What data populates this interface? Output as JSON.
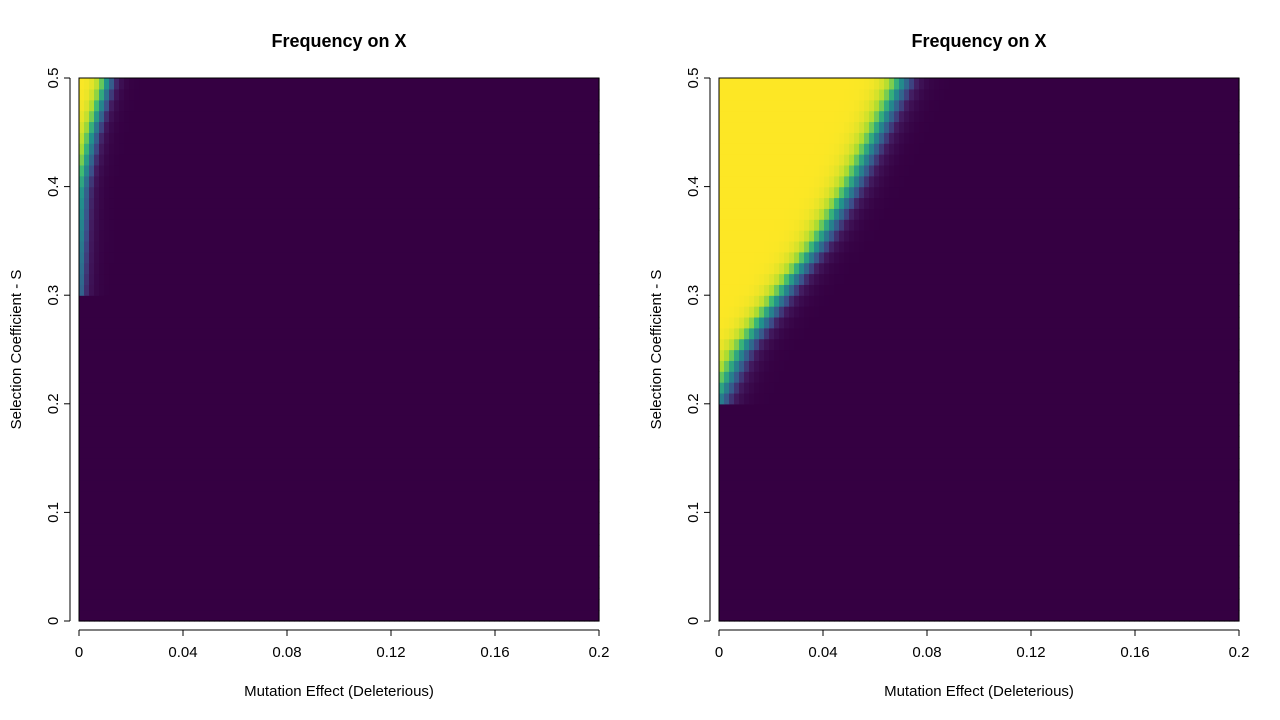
{
  "chart_data": [
    {
      "type": "heatmap",
      "title": "Frequency on X",
      "xlabel": "Mutation Effect (Deleterious)",
      "ylabel": "Selection Coefficient - S",
      "xlim": [
        0,
        0.2
      ],
      "ylim": [
        0,
        0.5
      ],
      "x_ticks": [
        0,
        0.04,
        0.08,
        0.12,
        0.16,
        0.2
      ],
      "x_tick_labels": [
        "0",
        "0.04",
        "0.08",
        "0.12",
        "0.16",
        "0.2"
      ],
      "y_ticks": [
        0,
        0.1,
        0.2,
        0.3,
        0.4,
        0.5
      ],
      "y_tick_labels": [
        "0",
        "0.1",
        "0.2",
        "0.3",
        "0.4",
        "0.5"
      ],
      "colormap": "viridis",
      "boundary": [
        {
          "s": 0.3,
          "mutation_effect": 0.0
        },
        {
          "s": 0.4,
          "mutation_effect": 0.002
        },
        {
          "s": 0.45,
          "mutation_effect": 0.006
        },
        {
          "s": 0.5,
          "mutation_effect": 0.012
        }
      ],
      "transition_width": 0.008
    },
    {
      "type": "heatmap",
      "title": "Frequency on X",
      "xlabel": "Mutation Effect (Deleterious)",
      "ylabel": "Selection Coefficient - S",
      "xlim": [
        0,
        0.2
      ],
      "ylim": [
        0,
        0.5
      ],
      "x_ticks": [
        0,
        0.04,
        0.08,
        0.12,
        0.16,
        0.2
      ],
      "x_tick_labels": [
        "0",
        "0.04",
        "0.08",
        "0.12",
        "0.16",
        "0.2"
      ],
      "y_ticks": [
        0,
        0.1,
        0.2,
        0.3,
        0.4,
        0.5
      ],
      "y_tick_labels": [
        "0",
        "0.1",
        "0.2",
        "0.3",
        "0.4",
        "0.5"
      ],
      "colormap": "viridis",
      "boundary": [
        {
          "s": 0.2,
          "mutation_effect": 0.0
        },
        {
          "s": 0.25,
          "mutation_effect": 0.01
        },
        {
          "s": 0.3,
          "mutation_effect": 0.025
        },
        {
          "s": 0.35,
          "mutation_effect": 0.04
        },
        {
          "s": 0.4,
          "mutation_effect": 0.052
        },
        {
          "s": 0.45,
          "mutation_effect": 0.062
        },
        {
          "s": 0.5,
          "mutation_effect": 0.072
        }
      ],
      "transition_width": 0.012
    }
  ]
}
